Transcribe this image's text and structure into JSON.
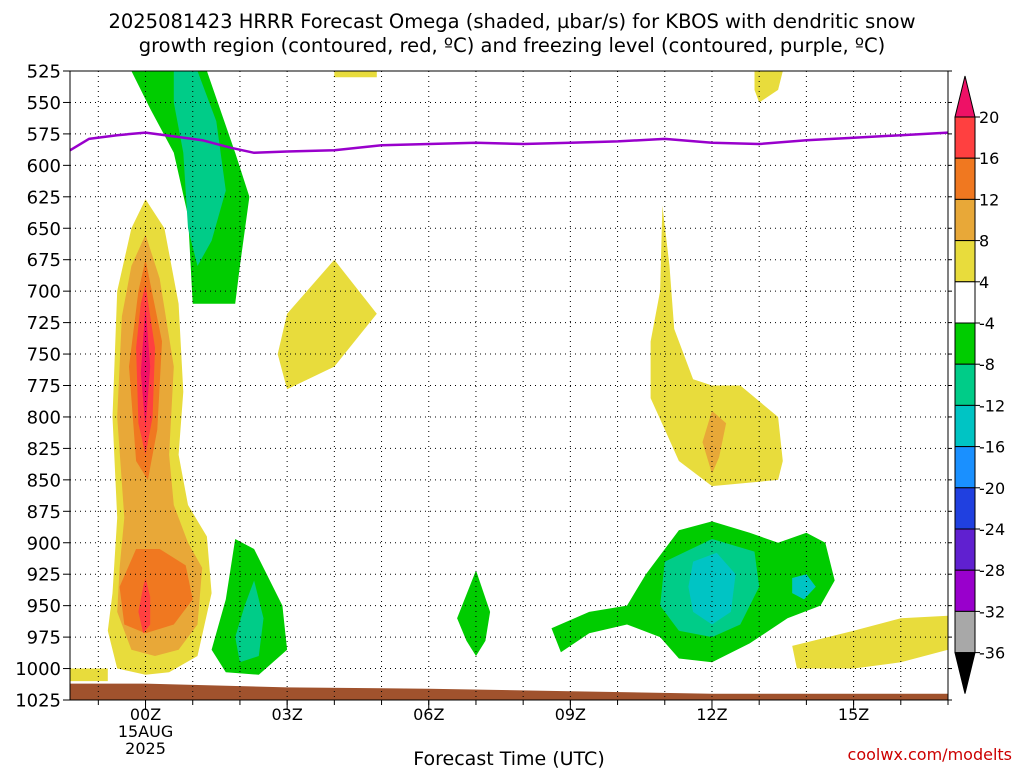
{
  "header": {
    "title_line1": "2025081423 HRRR Forecast Omega (shaded, µbar/s) for KBOS with dendritic snow",
    "title_line2": "growth region (contoured, red, ºC) and freezing level (contoured, purple, ºC)"
  },
  "footer": {
    "credit": "coolwx.com/modelts"
  },
  "colors": {
    "freezing_line": "#9900cc",
    "ground": "#a0522d",
    "credit": "#cc0000"
  },
  "chart_data": {
    "type": "heatmap",
    "title": "2025081423 HRRR Forecast Omega (shaded, µbar/s) for KBOS with dendritic snow growth region (contoured, red, ºC) and freezing level (contoured, purple, ºC)",
    "xlabel": "Forecast Time (UTC)",
    "xlim": [
      -1.6,
      17.0
    ],
    "x_ticks": [
      {
        "hour": 0,
        "label": "00Z",
        "sub": [
          "15AUG",
          "2025"
        ]
      },
      {
        "hour": 3,
        "label": "03Z"
      },
      {
        "hour": 6,
        "label": "06Z"
      },
      {
        "hour": 9,
        "label": "09Z"
      },
      {
        "hour": 12,
        "label": "12Z"
      },
      {
        "hour": 15,
        "label": "15Z"
      }
    ],
    "y_axis": "pressure (mb), inverted",
    "ylim": [
      1025,
      525
    ],
    "y_ticks": [
      "525",
      "550",
      "575",
      "600",
      "625",
      "650",
      "675",
      "700",
      "725",
      "750",
      "775",
      "800",
      "825",
      "850",
      "875",
      "900",
      "925",
      "950",
      "975",
      "1000",
      "1025"
    ],
    "grid": "dotted",
    "colorbar": {
      "labels": [
        "20",
        "16",
        "12",
        "8",
        "4",
        "-4",
        "-8",
        "-12",
        "-16",
        "-20",
        "-24",
        "-28",
        "-32",
        "-36"
      ],
      "bins": [
        {
          "color": "#ee1166"
        },
        {
          "color": "#ff4040"
        },
        {
          "color": "#f07820"
        },
        {
          "color": "#e8a838"
        },
        {
          "color": "#e8dc3c"
        },
        {
          "color": "#ffffff"
        },
        {
          "color": "#00cc00"
        },
        {
          "color": "#00cc88"
        },
        {
          "color": "#00c4c4"
        },
        {
          "color": "#1a90ff"
        },
        {
          "color": "#2040e0"
        },
        {
          "color": "#6020d0"
        },
        {
          "color": "#9900cc"
        },
        {
          "color": "#a8a8a8"
        },
        {
          "color": "#000000"
        }
      ]
    },
    "freezing_level": {
      "hour": [
        -1.6,
        -1.2,
        -0.6,
        0.0,
        0.6,
        1.2,
        1.8,
        2.3,
        3.0,
        4.0,
        5.0,
        6.0,
        7.0,
        8.0,
        9.0,
        10.0,
        11.0,
        12.0,
        13.0,
        14.0,
        15.0,
        16.0,
        17.0
      ],
      "pressure": [
        588,
        579,
        576,
        574,
        577,
        580,
        586,
        590,
        589,
        588,
        584,
        583,
        582,
        583,
        582,
        581,
        579,
        582,
        583,
        580,
        578,
        576,
        574
      ]
    },
    "regions": [
      {
        "color": "#00cc00",
        "points": [
          [
            -0.3,
            525
          ],
          [
            1.3,
            525
          ],
          [
            1.9,
            590
          ],
          [
            2.2,
            625
          ],
          [
            2.0,
            680
          ],
          [
            1.9,
            710
          ],
          [
            1.0,
            710
          ],
          [
            0.9,
            640
          ],
          [
            0.6,
            590
          ],
          [
            0.1,
            555
          ],
          [
            -0.3,
            525
          ]
        ]
      },
      {
        "color": "#00cc88",
        "points": [
          [
            0.6,
            525
          ],
          [
            1.1,
            525
          ],
          [
            1.5,
            565
          ],
          [
            1.7,
            620
          ],
          [
            1.4,
            660
          ],
          [
            1.1,
            680
          ],
          [
            0.9,
            650
          ],
          [
            0.8,
            590
          ],
          [
            0.6,
            550
          ],
          [
            0.6,
            525
          ]
        ]
      },
      {
        "color": "#e8dc3c",
        "points": [
          [
            0.0,
            627
          ],
          [
            0.4,
            650
          ],
          [
            0.7,
            710
          ],
          [
            0.8,
            780
          ],
          [
            0.7,
            830
          ],
          [
            0.9,
            870
          ],
          [
            1.3,
            895
          ],
          [
            1.4,
            940
          ],
          [
            1.1,
            990
          ],
          [
            0.5,
            1003
          ],
          [
            0.0,
            1005
          ],
          [
            -0.6,
            1000
          ],
          [
            -0.8,
            970
          ],
          [
            -0.7,
            940
          ],
          [
            -0.6,
            880
          ],
          [
            -0.7,
            800
          ],
          [
            -0.6,
            700
          ],
          [
            -0.3,
            650
          ],
          [
            0.0,
            627
          ]
        ]
      },
      {
        "color": "#e8a838",
        "points": [
          [
            0.0,
            655
          ],
          [
            0.3,
            690
          ],
          [
            0.6,
            760
          ],
          [
            0.5,
            830
          ],
          [
            0.6,
            870
          ],
          [
            0.9,
            900
          ],
          [
            1.2,
            920
          ],
          [
            1.1,
            965
          ],
          [
            0.7,
            985
          ],
          [
            0.2,
            990
          ],
          [
            -0.3,
            985
          ],
          [
            -0.6,
            955
          ],
          [
            -0.55,
            920
          ],
          [
            -0.45,
            880
          ],
          [
            -0.6,
            800
          ],
          [
            -0.5,
            720
          ],
          [
            -0.3,
            680
          ],
          [
            0.0,
            655
          ]
        ]
      },
      {
        "color": "#f07820",
        "points": [
          [
            0.0,
            675
          ],
          [
            0.35,
            740
          ],
          [
            0.25,
            810
          ],
          [
            0.05,
            850
          ],
          [
            -0.2,
            835
          ],
          [
            -0.35,
            760
          ],
          [
            -0.15,
            700
          ],
          [
            0.0,
            675
          ]
        ]
      },
      {
        "color": "#f07820",
        "points": [
          [
            -0.2,
            905
          ],
          [
            0.3,
            905
          ],
          [
            0.85,
            918
          ],
          [
            1.0,
            945
          ],
          [
            0.6,
            965
          ],
          [
            0.0,
            972
          ],
          [
            -0.45,
            965
          ],
          [
            -0.55,
            935
          ],
          [
            -0.2,
            905
          ]
        ]
      },
      {
        "color": "#ff4040",
        "points": [
          [
            0.0,
            695
          ],
          [
            0.2,
            745
          ],
          [
            0.15,
            800
          ],
          [
            0.0,
            830
          ],
          [
            -0.15,
            805
          ],
          [
            -0.2,
            745
          ],
          [
            -0.1,
            710
          ],
          [
            0.0,
            695
          ]
        ]
      },
      {
        "color": "#ee1166",
        "points": [
          [
            0.0,
            712
          ],
          [
            0.1,
            760
          ],
          [
            0.0,
            808
          ],
          [
            -0.1,
            765
          ],
          [
            0.0,
            712
          ]
        ]
      },
      {
        "color": "#ff4040",
        "points": [
          [
            0.0,
            928
          ],
          [
            0.1,
            943
          ],
          [
            0.1,
            965
          ],
          [
            -0.05,
            972
          ],
          [
            -0.15,
            955
          ],
          [
            -0.05,
            935
          ],
          [
            0.0,
            928
          ]
        ]
      },
      {
        "color": "#e8dc3c",
        "points": [
          [
            4.0,
            675
          ],
          [
            4.9,
            718
          ],
          [
            4.0,
            760
          ],
          [
            3.0,
            778
          ],
          [
            2.8,
            750
          ],
          [
            3.0,
            718
          ],
          [
            4.0,
            675
          ]
        ]
      },
      {
        "color": "#e8dc3c",
        "points": [
          [
            -1.6,
            1000
          ],
          [
            -0.8,
            1000
          ],
          [
            -0.8,
            1010
          ],
          [
            -1.6,
            1010
          ],
          [
            -1.6,
            1000
          ]
        ]
      },
      {
        "color": "#e8dc3c",
        "points": [
          [
            4.0,
            525
          ],
          [
            4.9,
            525
          ],
          [
            4.9,
            530
          ],
          [
            4.0,
            530
          ],
          [
            4.0,
            525
          ]
        ]
      },
      {
        "color": "#e8dc3c",
        "points": [
          [
            12.9,
            525
          ],
          [
            13.5,
            525
          ],
          [
            13.4,
            540
          ],
          [
            13.0,
            550
          ],
          [
            12.9,
            540
          ],
          [
            12.9,
            525
          ]
        ]
      },
      {
        "color": "#e8dc3c",
        "points": [
          [
            10.95,
            632
          ],
          [
            11.1,
            680
          ],
          [
            11.2,
            730
          ],
          [
            11.6,
            770
          ],
          [
            12.0,
            775
          ],
          [
            12.6,
            775
          ],
          [
            13.4,
            800
          ],
          [
            13.5,
            835
          ],
          [
            13.4,
            850
          ],
          [
            12.0,
            855
          ],
          [
            11.3,
            835
          ],
          [
            11.0,
            810
          ],
          [
            10.7,
            785
          ],
          [
            10.7,
            740
          ],
          [
            10.9,
            700
          ],
          [
            10.95,
            632
          ]
        ]
      },
      {
        "color": "#e8a838",
        "points": [
          [
            12.0,
            795
          ],
          [
            12.3,
            805
          ],
          [
            12.15,
            832
          ],
          [
            12.0,
            845
          ],
          [
            11.8,
            820
          ],
          [
            12.0,
            795
          ]
        ]
      },
      {
        "color": "#e8dc3c",
        "points": [
          [
            13.7,
            982
          ],
          [
            15.0,
            970
          ],
          [
            16.0,
            960
          ],
          [
            17.0,
            958
          ],
          [
            17.0,
            985
          ],
          [
            16.0,
            995
          ],
          [
            15.0,
            1000
          ],
          [
            13.8,
            1000
          ],
          [
            13.7,
            982
          ]
        ]
      },
      {
        "color": "#00cc00",
        "points": [
          [
            1.9,
            897
          ],
          [
            2.3,
            905
          ],
          [
            2.9,
            950
          ],
          [
            3.0,
            985
          ],
          [
            2.4,
            1005
          ],
          [
            1.7,
            1003
          ],
          [
            1.4,
            985
          ],
          [
            1.7,
            945
          ],
          [
            1.9,
            897
          ]
        ]
      },
      {
        "color": "#00cc88",
        "points": [
          [
            2.3,
            930
          ],
          [
            2.5,
            960
          ],
          [
            2.4,
            990
          ],
          [
            2.0,
            995
          ],
          [
            1.9,
            975
          ],
          [
            2.1,
            950
          ],
          [
            2.3,
            930
          ]
        ]
      },
      {
        "color": "#00cc00",
        "points": [
          [
            7.0,
            922
          ],
          [
            7.3,
            955
          ],
          [
            7.2,
            978
          ],
          [
            7.0,
            990
          ],
          [
            6.8,
            978
          ],
          [
            6.6,
            960
          ],
          [
            7.0,
            922
          ]
        ]
      },
      {
        "color": "#00cc00",
        "points": [
          [
            8.6,
            968
          ],
          [
            9.4,
            955
          ],
          [
            10.2,
            950
          ],
          [
            10.6,
            925
          ],
          [
            11.3,
            890
          ],
          [
            12.0,
            883
          ],
          [
            12.8,
            892
          ],
          [
            13.4,
            900
          ],
          [
            14.0,
            892
          ],
          [
            14.4,
            900
          ],
          [
            14.6,
            930
          ],
          [
            14.3,
            950
          ],
          [
            13.6,
            960
          ],
          [
            12.8,
            980
          ],
          [
            12.0,
            995
          ],
          [
            11.3,
            992
          ],
          [
            10.9,
            975
          ],
          [
            10.2,
            965
          ],
          [
            9.4,
            972
          ],
          [
            8.8,
            987
          ],
          [
            8.6,
            968
          ]
        ]
      },
      {
        "color": "#00cc88",
        "points": [
          [
            11.0,
            915
          ],
          [
            12.0,
            897
          ],
          [
            12.9,
            907
          ],
          [
            13.0,
            935
          ],
          [
            12.6,
            965
          ],
          [
            12.0,
            975
          ],
          [
            11.3,
            970
          ],
          [
            10.9,
            950
          ],
          [
            11.0,
            915
          ]
        ]
      },
      {
        "color": "#00c4c4",
        "points": [
          [
            11.6,
            915
          ],
          [
            12.1,
            908
          ],
          [
            12.5,
            925
          ],
          [
            12.4,
            955
          ],
          [
            12.0,
            965
          ],
          [
            11.6,
            955
          ],
          [
            11.5,
            935
          ],
          [
            11.6,
            915
          ]
        ]
      },
      {
        "color": "#00c4c4",
        "points": [
          [
            13.7,
            928
          ],
          [
            14.0,
            925
          ],
          [
            14.2,
            935
          ],
          [
            13.95,
            945
          ],
          [
            13.7,
            940
          ],
          [
            13.7,
            928
          ]
        ]
      }
    ],
    "ground": {
      "color": "#a0522d",
      "points": [
        [
          -1.6,
          1012
        ],
        [
          0.0,
          1012
        ],
        [
          3.0,
          1015
        ],
        [
          6.0,
          1016
        ],
        [
          9.0,
          1018
        ],
        [
          12.0,
          1020
        ],
        [
          15.0,
          1020
        ],
        [
          17.0,
          1020
        ],
        [
          17.0,
          1025
        ],
        [
          -1.6,
          1025
        ],
        [
          -1.6,
          1012
        ]
      ]
    }
  }
}
